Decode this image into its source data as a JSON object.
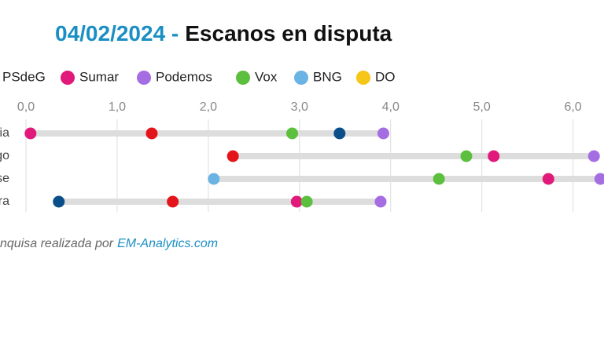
{
  "chart_data": {
    "type": "dotplot",
    "title_date": "04/02/2024 -",
    "title": "Escanos en disputa",
    "categories": [
      "ia",
      "go",
      "se",
      "ra"
    ],
    "series": [
      {
        "color": "#0b4f8a",
        "values": [
          3.44,
          null,
          null,
          0.36
        ]
      },
      {
        "name": "PSdeG",
        "color": "#e3151a",
        "values": [
          1.38,
          2.27,
          null,
          1.61
        ]
      },
      {
        "name": "Sumar",
        "color": "#e0197a",
        "values": [
          0.05,
          5.13,
          5.73,
          2.97
        ]
      },
      {
        "name": "Podemos",
        "color": "#a56de2",
        "values": [
          3.92,
          6.23,
          6.3,
          3.89
        ]
      },
      {
        "name": "Vox",
        "color": "#5cbf3e",
        "values": [
          2.92,
          4.83,
          4.53,
          3.08
        ]
      },
      {
        "name": "BNG",
        "color": "#6ab3e3",
        "values": [
          null,
          null,
          2.06,
          null
        ]
      },
      {
        "name": "DO",
        "color": "#f5c518",
        "values": [
          null,
          null,
          null,
          null
        ]
      }
    ],
    "xlim": [
      0,
      6.34
    ],
    "xticks": [
      {
        "value": 0,
        "label": "0,0"
      },
      {
        "value": 1,
        "label": "1,0"
      },
      {
        "value": 2,
        "label": "2,0"
      },
      {
        "value": 3,
        "label": "3,0"
      },
      {
        "value": 4,
        "label": "4,0"
      },
      {
        "value": 5,
        "label": "5,0"
      },
      {
        "value": 6,
        "label": "6,0"
      }
    ],
    "grid": true,
    "source_prefix": "nquisa realizada por",
    "source_link": "EM-Analytics.com"
  }
}
